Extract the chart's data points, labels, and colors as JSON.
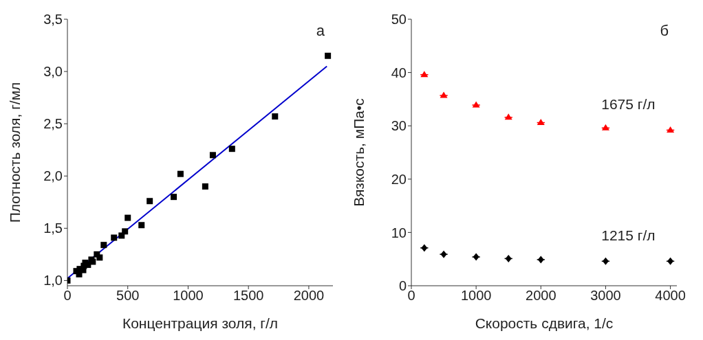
{
  "chart_data": [
    {
      "type": "scatter",
      "xlabel": "Концентрация золя, г/л",
      "ylabel": "Плотность золя, г/мл",
      "annotations": [
        "а"
      ],
      "xlim": [
        0,
        2200
      ],
      "xticks": [
        0,
        500,
        1000,
        1500,
        2000
      ],
      "ylim": [
        0.95,
        3.5
      ],
      "yticks": [
        {
          "value": 1.0,
          "label": "1,0"
        },
        {
          "value": 1.5,
          "label": "1,5"
        },
        {
          "value": 2.0,
          "label": "2,0"
        },
        {
          "value": 2.5,
          "label": "2,5"
        },
        {
          "value": 3.0,
          "label": "3,0"
        },
        {
          "value": 3.5,
          "label": "3,5"
        }
      ],
      "marker": "square",
      "x": [
        0,
        74,
        97,
        102,
        131,
        136,
        148,
        170,
        199,
        210,
        244,
        267,
        301,
        386,
        449,
        477,
        500,
        614,
        682,
        881,
        937,
        1142,
        1205,
        1364,
        1720,
        2158
      ],
      "series": [
        {
          "color": "#000000",
          "values": [
            1.0,
            1.09,
            1.06,
            1.11,
            1.1,
            1.14,
            1.17,
            1.15,
            1.2,
            1.18,
            1.25,
            1.22,
            1.34,
            1.41,
            1.43,
            1.47,
            1.6,
            1.53,
            1.76,
            1.8,
            2.02,
            1.9,
            2.2,
            2.26,
            2.57,
            3.15
          ]
        },
        {
          "type": "line",
          "color": "#0000cc",
          "marker": "none",
          "x": [
            0,
            2150
          ],
          "values": [
            1.02,
            3.05
          ]
        }
      ]
    },
    {
      "type": "scatter",
      "xlabel": "Скорость сдвига, 1/с",
      "ylabel": "Вязкость, мПа•с",
      "annotations": [
        "б"
      ],
      "xlim": [
        0,
        4100
      ],
      "xticks": [
        0,
        1000,
        2000,
        3000,
        4000
      ],
      "ylim": [
        0,
        50
      ],
      "yticks": [
        0,
        10,
        20,
        30,
        40,
        50
      ],
      "x": [
        200,
        500,
        1000,
        1500,
        2000,
        3000,
        4000
      ],
      "series": [
        {
          "name": "1675 г/л",
          "color": "#ff0000",
          "marker": "triangle",
          "values": [
            39.6,
            35.7,
            33.9,
            31.6,
            30.6,
            29.6,
            29.2
          ],
          "xerrors": [
            60,
            60,
            60,
            60,
            60,
            60,
            60
          ]
        },
        {
          "name": "1215 г/л",
          "color": "#000000",
          "marker": "diamond",
          "values": [
            7.1,
            5.9,
            5.4,
            5.1,
            4.9,
            4.6,
            4.6
          ],
          "xerrors": [
            60,
            60,
            60,
            60,
            60,
            60,
            60
          ]
        }
      ]
    }
  ]
}
